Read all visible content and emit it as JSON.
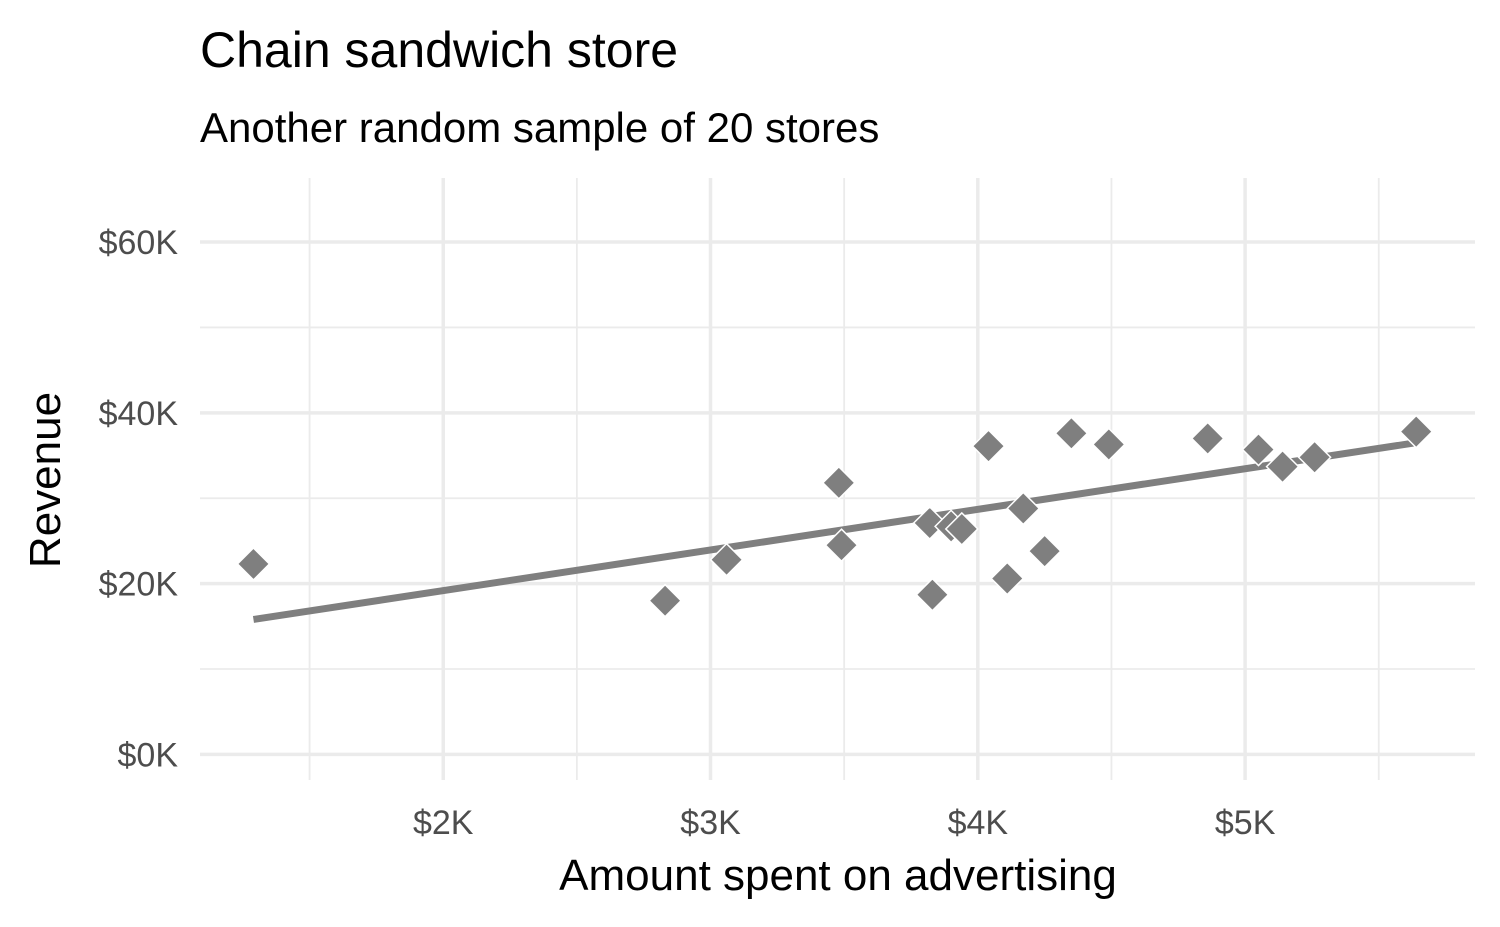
{
  "chart_data": {
    "type": "scatter",
    "title": "Chain sandwich store",
    "subtitle": "Another random sample of 20 stores",
    "xlabel": "Amount spent on advertising",
    "ylabel": "Revenue",
    "xlim": [
      1090,
      5860
    ],
    "ylim": [
      -3000,
      67500
    ],
    "x_ticks": [
      {
        "value": 2000,
        "label": "$2K"
      },
      {
        "value": 3000,
        "label": "$3K"
      },
      {
        "value": 4000,
        "label": "$4K"
      },
      {
        "value": 5000,
        "label": "$5K"
      }
    ],
    "y_ticks": [
      {
        "value": 0,
        "label": "$0K"
      },
      {
        "value": 20000,
        "label": "$20K"
      },
      {
        "value": 40000,
        "label": "$40K"
      },
      {
        "value": 60000,
        "label": "$60K"
      }
    ],
    "x_minor_ticks": [
      1500,
      2500,
      3500,
      4500,
      5500
    ],
    "y_minor_ticks": [
      10000,
      30000,
      50000
    ],
    "grid": true,
    "point_shape": "diamond",
    "point_color": "#7f7f7f",
    "line_color": "#7f7f7f",
    "points": [
      {
        "x": 1290,
        "y": 22300
      },
      {
        "x": 2830,
        "y": 18000
      },
      {
        "x": 3060,
        "y": 22800
      },
      {
        "x": 3480,
        "y": 31800
      },
      {
        "x": 3490,
        "y": 24500
      },
      {
        "x": 3820,
        "y": 27100
      },
      {
        "x": 3830,
        "y": 18700
      },
      {
        "x": 3900,
        "y": 26700
      },
      {
        "x": 3940,
        "y": 26400
      },
      {
        "x": 4040,
        "y": 36100
      },
      {
        "x": 4110,
        "y": 20600
      },
      {
        "x": 4170,
        "y": 28800
      },
      {
        "x": 4250,
        "y": 23800
      },
      {
        "x": 4350,
        "y": 37600
      },
      {
        "x": 4490,
        "y": 36300
      },
      {
        "x": 4860,
        "y": 37000
      },
      {
        "x": 5050,
        "y": 35700
      },
      {
        "x": 5140,
        "y": 33700
      },
      {
        "x": 5260,
        "y": 34800
      },
      {
        "x": 5640,
        "y": 37800
      }
    ],
    "trend_line": {
      "x": [
        1290,
        5640
      ],
      "y": [
        15800,
        36500
      ]
    }
  }
}
